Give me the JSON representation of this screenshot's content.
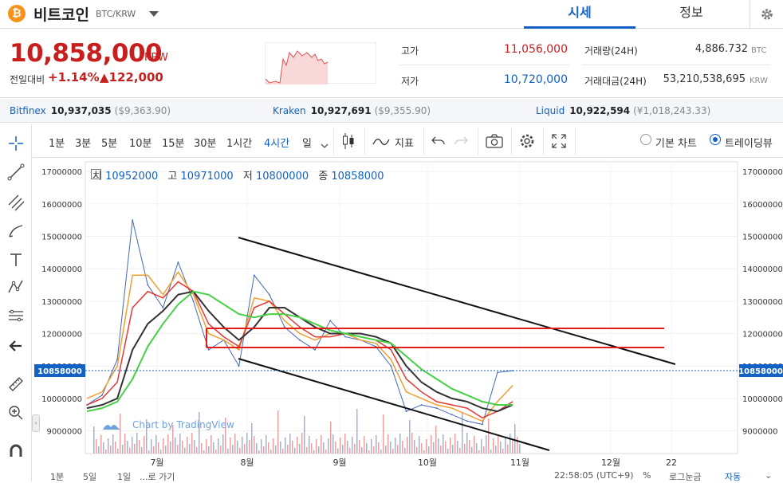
{
  "header": {
    "coin_logo_text": "₿",
    "coin_name": "비트코인",
    "pair": "BTC/KRW",
    "tab_quote": "시세",
    "tab_info": "정보"
  },
  "summary": {
    "price": "10,858,000",
    "price_unit": "KRW",
    "change_label": "전일대비",
    "change_pct": "+1.14%",
    "change_amt": "▲122,000",
    "high_label": "고가",
    "high_value": "11,056,000",
    "low_label": "저가",
    "low_value": "10,720,000",
    "volume_label": "거래량(24H)",
    "volume_value": "4,886.732",
    "volume_unit": "BTC",
    "amount_label": "거래대금(24H)",
    "amount_value": "53,210,538,695",
    "amount_unit": "KRW"
  },
  "exchanges": [
    {
      "name": "Bitfinex",
      "price": "10,937,035",
      "sub": "($9,363.90)"
    },
    {
      "name": "Kraken",
      "price": "10,927,691",
      "sub": "($9,355.90)"
    },
    {
      "name": "Liquid",
      "price": "10,922,594",
      "sub": "(¥1,018,243.33)"
    }
  ],
  "toolbar": {
    "intervals": [
      "1분",
      "3분",
      "5분",
      "10분",
      "15분",
      "30분",
      "1시간",
      "4시간",
      "일"
    ],
    "active_interval": "4시간",
    "indicator_label": "지표",
    "basic_chart": "기본 차트",
    "tradingview": "트레이딩뷰"
  },
  "ohlc": {
    "open_label": "시",
    "open": "10952000",
    "high_label": "고",
    "high": "10971000",
    "low_label": "저",
    "low": "10800000",
    "close_label": "종",
    "close": "10858000"
  },
  "chart_data": {
    "type": "line",
    "y_ticks": [
      "17000000",
      "16000000",
      "15000000",
      "14000000",
      "13000000",
      "12000000",
      "11000000",
      "10000000",
      "9000000"
    ],
    "x_ticks": [
      "7월",
      "8월",
      "9월",
      "10월",
      "11월",
      "12월",
      "22"
    ],
    "ylim": [
      8300000,
      17300000
    ],
    "current_price_label": "10858000",
    "watermark": "Chart by TradingView",
    "series": [
      {
        "values": [
          9800000,
          10100000,
          11200000,
          15500000,
          13500000,
          12800000,
          14200000,
          13000000,
          11500000,
          11800000,
          11000000,
          13800000,
          13200000,
          12200000,
          11800000,
          11500000,
          12400000,
          11900000,
          11800000,
          11600000,
          11000000,
          9600000,
          9800000,
          9700000,
          9500000,
          9300000,
          9200000,
          10800000,
          10858000
        ]
      },
      {
        "values": [
          10000000,
          10200000,
          11000000,
          13800000,
          13800000,
          13200000,
          13900000,
          13200000,
          12000000,
          11800000,
          11500000,
          13100000,
          13000000,
          12400000,
          12000000,
          11800000,
          12000000,
          12000000,
          11800000,
          11700000,
          11200000,
          10200000,
          10000000,
          9800000,
          9700000,
          9500000,
          9300000,
          9900000,
          10400000
        ]
      },
      {
        "values": [
          9800000,
          10000000,
          10500000,
          12800000,
          13300000,
          13100000,
          13600000,
          13300000,
          12300000,
          11900000,
          11600000,
          12800000,
          13000000,
          12600000,
          12200000,
          11900000,
          11900000,
          12000000,
          11900000,
          11800000,
          11500000,
          10600000,
          10200000,
          9900000,
          9800000,
          9700000,
          9400000,
          9600000,
          9900000
        ]
      },
      {
        "values": [
          9700000,
          9800000,
          10000000,
          11500000,
          12300000,
          12700000,
          13200000,
          13300000,
          12700000,
          12200000,
          11800000,
          12200000,
          12800000,
          12800000,
          12500000,
          12200000,
          12000000,
          12000000,
          12000000,
          11900000,
          11700000,
          11000000,
          10500000,
          10200000,
          10000000,
          9900000,
          9700000,
          9600000,
          9800000
        ]
      },
      {
        "values": [
          9600000,
          9700000,
          9900000,
          10600000,
          11600000,
          12300000,
          12900000,
          13300000,
          13200000,
          12900000,
          12600000,
          12500000,
          12600000,
          12600000,
          12500000,
          12300000,
          12100000,
          12000000,
          11900000,
          11800000,
          11700000,
          11300000,
          10900000,
          10600000,
          10300000,
          10100000,
          9900000,
          9800000,
          9800000
        ]
      }
    ]
  },
  "bottom": {
    "ranges": [
      "1분",
      "5일",
      "1일",
      "...로 가기"
    ],
    "time": "22:58:05 (UTC+9)",
    "percent": "%",
    "log": "로그눈금",
    "auto": "자동"
  }
}
